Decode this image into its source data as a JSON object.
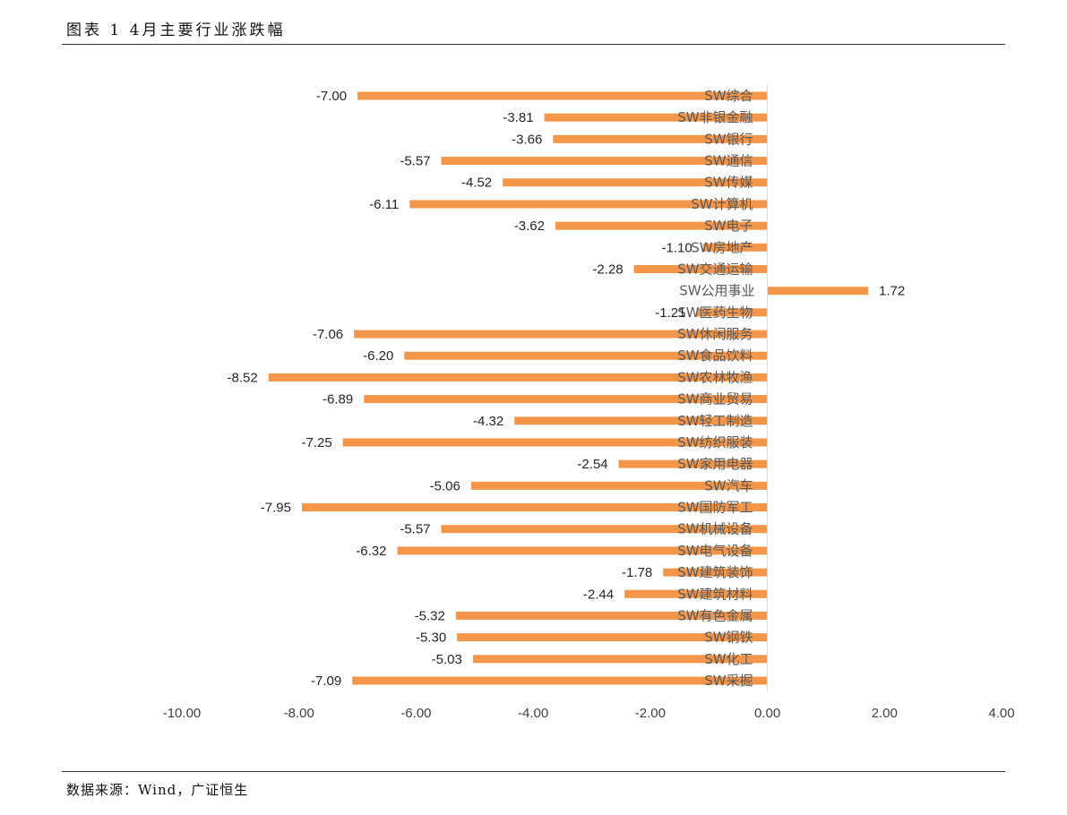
{
  "header": {
    "title": "图表 1 4月主要行业涨跌幅"
  },
  "footer": {
    "source": "数据来源：Wind，广证恒生"
  },
  "colors": {
    "bar": "#F4964A",
    "axis": "#D9D9D9",
    "text": "#404040"
  },
  "chart_data": {
    "type": "bar",
    "orientation": "horizontal",
    "title": "",
    "xlabel": "",
    "ylabel": "",
    "xlim": [
      -10,
      4
    ],
    "x_ticks": [
      "-10.00",
      "-8.00",
      "-6.00",
      "-4.00",
      "-2.00",
      "0.00",
      "2.00",
      "4.00"
    ],
    "grid": false,
    "categories": [
      "SW综合",
      "SW非银金融",
      "SW银行",
      "SW通信",
      "SW传媒",
      "SW计算机",
      "SW电子",
      "SW房地产",
      "SW交通运输",
      "SW公用事业",
      "SW医药生物",
      "SW休闲服务",
      "SW食品饮料",
      "SW农林牧渔",
      "SW商业贸易",
      "SW轻工制造",
      "SW纺织服装",
      "SW家用电器",
      "SW汽车",
      "SW国防军工",
      "SW机械设备",
      "SW电气设备",
      "SW建筑装饰",
      "SW建筑材料",
      "SW有色金属",
      "SW钢铁",
      "SW化工",
      "SW采掘"
    ],
    "values": [
      -7.0,
      -3.81,
      -3.66,
      -5.57,
      -4.52,
      -6.11,
      -3.62,
      -1.1,
      -2.28,
      1.72,
      -1.21,
      -7.06,
      -6.2,
      -8.52,
      -6.89,
      -4.32,
      -7.25,
      -2.54,
      -5.06,
      -7.95,
      -5.57,
      -6.32,
      -1.78,
      -2.44,
      -5.32,
      -5.3,
      -5.03,
      -7.09
    ],
    "value_labels": [
      "-7.00",
      "-3.81",
      "-3.66",
      "-5.57",
      "-4.52",
      "-6.11",
      "-3.62",
      "-1.10",
      "-2.28",
      "1.72",
      "-1.21",
      "-7.06",
      "-6.20",
      "-8.52",
      "-6.89",
      "-4.32",
      "-7.25",
      "-2.54",
      "-5.06",
      "-7.95",
      "-5.57",
      "-6.32",
      "-1.78",
      "-2.44",
      "-5.32",
      "-5.30",
      "-5.03",
      "-7.09"
    ]
  }
}
